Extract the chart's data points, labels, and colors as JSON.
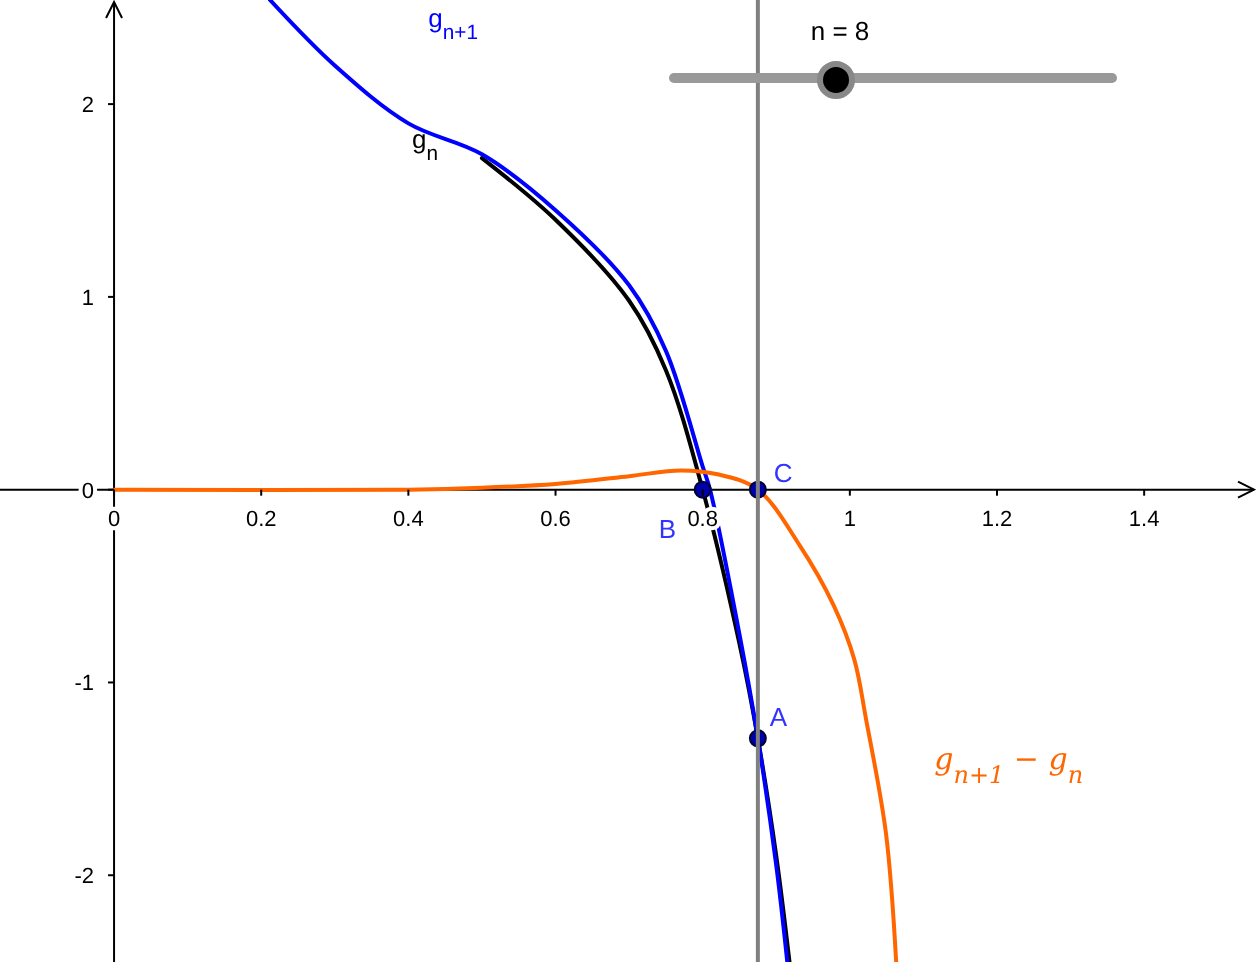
{
  "chart_data": {
    "type": "line",
    "xlim": [
      -0.155,
      1.552
    ],
    "ylim": [
      -2.45,
      2.54
    ],
    "xticks": [
      0,
      0.2,
      0.4,
      0.6,
      0.8,
      1,
      1.2,
      1.4
    ],
    "yticks": [
      -2,
      -1,
      0,
      1,
      2
    ],
    "grid": false,
    "series": [
      {
        "name": "g$_{n}$",
        "color": "#000000",
        "x": [
          0.5,
          0.6,
          0.7,
          0.75,
          0.8,
          0.85,
          0.875,
          0.9,
          0.918
        ],
        "values": [
          1.72,
          1.4,
          0.98,
          0.62,
          0,
          -0.8,
          -1.29,
          -1.9,
          -2.45
        ]
      },
      {
        "name": "g$_{n+1}$",
        "color": "#0000ff",
        "x": [
          0.212,
          0.3,
          0.4,
          0.5,
          0.6,
          0.7,
          0.75,
          0.8,
          0.81,
          0.85,
          0.875,
          0.9,
          0.915
        ],
        "values": [
          2.54,
          2.2,
          1.9,
          1.74,
          1.45,
          1.06,
          0.72,
          0.12,
          0,
          -0.75,
          -1.29,
          -1.95,
          -2.45
        ]
      },
      {
        "name": "g$_{n+1}$ − g$_{n}$",
        "color": "#ff6600",
        "x": [
          0,
          0.4,
          0.5,
          0.6,
          0.7,
          0.77,
          0.82,
          0.875,
          0.932,
          0.978,
          1.006,
          1.022,
          1.049,
          1.063
        ],
        "values": [
          0,
          0,
          0.01,
          0.03,
          0.07,
          0.1,
          0.08,
          0,
          -0.29,
          -0.6,
          -0.88,
          -1.19,
          -1.78,
          -2.45
        ]
      },
      {
        "type": "scatter",
        "marker": "circle",
        "color": "#0000aa",
        "x": [
          0.875,
          0.8,
          0.875
        ],
        "values": [
          -1.29,
          0,
          0
        ]
      }
    ],
    "ref_lines": [
      {
        "axis": "x",
        "value": 0.875,
        "color": "#808080"
      }
    ],
    "annotations": [
      "A",
      "B",
      "C",
      "n = 8"
    ]
  }
}
